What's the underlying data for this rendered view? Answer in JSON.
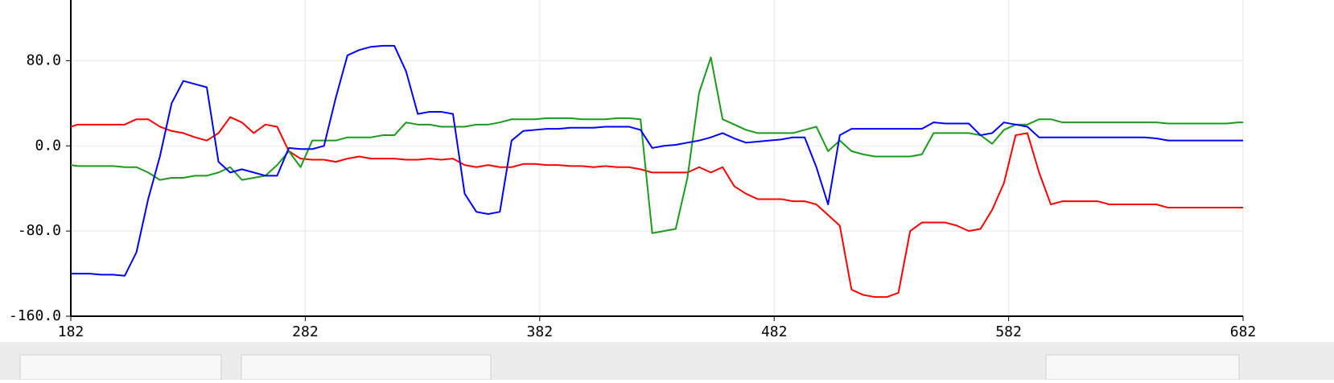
{
  "chart_data": {
    "type": "line",
    "x": [
      182,
      185,
      190,
      195,
      200,
      205,
      210,
      215,
      220,
      225,
      230,
      235,
      240,
      245,
      250,
      255,
      260,
      265,
      270,
      275,
      280,
      285,
      290,
      295,
      300,
      305,
      310,
      315,
      320,
      325,
      330,
      335,
      340,
      345,
      350,
      355,
      360,
      365,
      370,
      375,
      380,
      385,
      390,
      395,
      400,
      405,
      410,
      415,
      420,
      425,
      430,
      435,
      440,
      445,
      450,
      455,
      460,
      465,
      470,
      475,
      480,
      485,
      490,
      495,
      500,
      505,
      510,
      515,
      520,
      525,
      530,
      535,
      540,
      545,
      550,
      555,
      560,
      565,
      570,
      575,
      580,
      585,
      590,
      595,
      600,
      605,
      610,
      615,
      620,
      625,
      630,
      635,
      640,
      645,
      650,
      655,
      660,
      665,
      670,
      675,
      680,
      682
    ],
    "series": [
      {
        "color": "#ff0000",
        "values": [
          18,
          20,
          20,
          20,
          20,
          20,
          25,
          25,
          18,
          14,
          12,
          8,
          5,
          12,
          27,
          22,
          12,
          20,
          18,
          -5,
          -12,
          -13,
          -13,
          -15,
          -12,
          -10,
          -12,
          -12,
          -12,
          -13,
          -13,
          -12,
          -13,
          -12,
          -18,
          -20,
          -18,
          -20,
          -20,
          -17,
          -17,
          -18,
          -18,
          -19,
          -19,
          -20,
          -19,
          -20,
          -20,
          -22,
          -25,
          -25,
          -25,
          -25,
          -20,
          -25,
          -20,
          -38,
          -45,
          -50,
          -50,
          -50,
          -52,
          -52,
          -55,
          -65,
          -75,
          -135,
          -140,
          -142,
          -142,
          -138,
          -80,
          -72,
          -72,
          -72,
          -75,
          -80,
          -78,
          -60,
          -35,
          10,
          12,
          -25,
          -55,
          -52,
          -52,
          -52,
          -52,
          -55,
          -55,
          -55,
          -55,
          -55,
          -58,
          -58,
          -58,
          -58,
          -58,
          -58,
          -58,
          -58
        ]
      },
      {
        "color": "#1a9c1a",
        "values": [
          -18,
          -19,
          -19,
          -19,
          -19,
          -20,
          -20,
          -25,
          -32,
          -30,
          -30,
          -28,
          -28,
          -25,
          -20,
          -32,
          -30,
          -28,
          -18,
          -5,
          -20,
          5,
          5,
          5,
          8,
          8,
          8,
          10,
          10,
          22,
          20,
          20,
          18,
          18,
          18,
          20,
          20,
          22,
          25,
          25,
          25,
          26,
          26,
          26,
          25,
          25,
          25,
          26,
          26,
          25,
          -82,
          -80,
          -78,
          -30,
          50,
          83,
          25,
          20,
          15,
          12,
          12,
          12,
          12,
          15,
          18,
          -5,
          5,
          -5,
          -8,
          -10,
          -10,
          -10,
          -10,
          -8,
          12,
          12,
          12,
          12,
          10,
          2,
          15,
          20,
          20,
          25,
          25,
          22,
          22,
          22,
          22,
          22,
          22,
          22,
          22,
          22,
          21,
          21,
          21,
          21,
          21,
          21,
          22,
          22
        ]
      },
      {
        "color": "#0000ff",
        "values": [
          -120,
          -120,
          -120,
          -121,
          -121,
          -122,
          -100,
          -50,
          -10,
          40,
          61,
          58,
          55,
          -15,
          -25,
          -22,
          -25,
          -28,
          -28,
          -2,
          -3,
          -3,
          0,
          45,
          85,
          90,
          93,
          94,
          94,
          70,
          30,
          32,
          32,
          30,
          -45,
          -62,
          -64,
          -62,
          5,
          14,
          15,
          16,
          16,
          17,
          17,
          17,
          18,
          18,
          18,
          15,
          -2,
          0,
          1,
          3,
          5,
          8,
          12,
          7,
          3,
          4,
          5,
          6,
          8,
          8,
          -20,
          -55,
          10,
          16,
          16,
          16,
          16,
          16,
          16,
          16,
          22,
          21,
          21,
          21,
          10,
          12,
          22,
          20,
          18,
          8,
          8,
          8,
          8,
          8,
          8,
          8,
          8,
          8,
          8,
          7,
          5,
          5,
          5,
          5,
          5,
          5,
          5,
          5
        ]
      }
    ],
    "xlim": [
      182,
      682
    ],
    "xticks": [
      182,
      282,
      382,
      482,
      582,
      682
    ],
    "ylim": [
      -160,
      137
    ],
    "yticks": [
      {
        "value": -160,
        "label": "-160.0"
      },
      {
        "value": -80,
        "label": "-80.0"
      },
      {
        "value": 0,
        "label": "0.0"
      },
      {
        "value": 80,
        "label": "80.0"
      }
    ],
    "grid": true
  }
}
